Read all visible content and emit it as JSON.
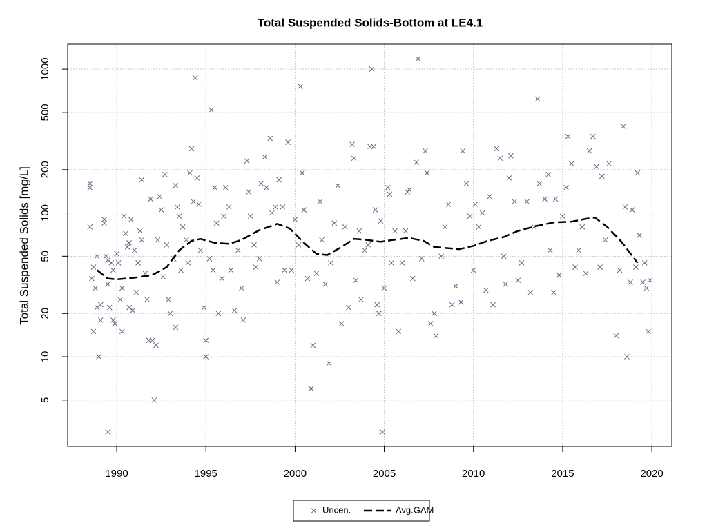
{
  "chart_data": {
    "type": "scatter",
    "title": "Total Suspended Solids-Bottom at LE4.1",
    "y_label": "Total Suspended Solids [mg/L]",
    "log_y": true,
    "grid": true,
    "legend": "bottom",
    "xlim": [
      1987.25,
      2021.12
    ],
    "ylim": [
      2.38,
      1490
    ],
    "xticks": [
      1990,
      1995,
      2000,
      2005,
      2010,
      2015,
      2020
    ],
    "yticks": [
      5,
      10,
      20,
      50,
      100,
      200,
      500,
      1000
    ],
    "series": [
      {
        "name": "Uncen.",
        "kind": "points",
        "color": "#5b6a87",
        "x": [
          1988.5,
          1988.5,
          1988.5,
          1988.6,
          1988.7,
          1988.7,
          1988.8,
          1988.9,
          1988.9,
          1989.0,
          1989.1,
          1989.1,
          1989.3,
          1989.3,
          1989.4,
          1989.5,
          1989.5,
          1989.5,
          1989.6,
          1989.7,
          1989.8,
          1989.8,
          1989.9,
          1990.0,
          1990.1,
          1990.2,
          1990.3,
          1990.3,
          1990.4,
          1990.5,
          1990.6,
          1990.7,
          1990.7,
          1990.8,
          1990.9,
          1991.0,
          1991.1,
          1991.2,
          1991.3,
          1991.4,
          1991.4,
          1991.6,
          1991.7,
          1991.8,
          1991.9,
          1992.0,
          1992.1,
          1992.2,
          1992.3,
          1992.4,
          1992.5,
          1992.6,
          1992.7,
          1992.8,
          1992.9,
          1993.0,
          1993.2,
          1993.3,
          1993.3,
          1993.4,
          1993.5,
          1993.6,
          1993.7,
          1993.9,
          1994.0,
          1994.1,
          1994.2,
          1994.3,
          1994.4,
          1994.5,
          1994.6,
          1994.7,
          1994.9,
          1995.0,
          1995.0,
          1995.2,
          1995.3,
          1995.4,
          1995.5,
          1995.6,
          1995.7,
          1995.9,
          1996.0,
          1996.1,
          1996.3,
          1996.4,
          1996.6,
          1996.8,
          1997.0,
          1997.1,
          1997.3,
          1997.4,
          1997.5,
          1997.7,
          1997.8,
          1998.0,
          1998.1,
          1998.3,
          1998.4,
          1998.6,
          1998.7,
          1998.9,
          1999.0,
          1999.1,
          1999.3,
          1999.4,
          1999.6,
          1999.8,
          2000.0,
          2000.2,
          2000.3,
          2000.4,
          2000.5,
          2000.7,
          2000.9,
          2001.0,
          2001.2,
          2001.4,
          2001.5,
          2001.7,
          2001.9,
          2002.0,
          2002.2,
          2002.4,
          2002.6,
          2002.8,
          2003.0,
          2003.2,
          2003.3,
          2003.4,
          2003.6,
          2003.7,
          2003.9,
          2004.1,
          2004.2,
          2004.3,
          2004.4,
          2004.5,
          2004.6,
          2004.7,
          2004.8,
          2004.9,
          2005.0,
          2005.2,
          2005.3,
          2005.4,
          2005.6,
          2005.8,
          2006.0,
          2006.2,
          2006.3,
          2006.4,
          2006.6,
          2006.8,
          2006.9,
          2007.1,
          2007.3,
          2007.4,
          2007.6,
          2007.8,
          2007.9,
          2008.2,
          2008.4,
          2008.6,
          2008.8,
          2009.0,
          2009.3,
          2009.4,
          2009.6,
          2009.8,
          2010.0,
          2010.1,
          2010.3,
          2010.5,
          2010.7,
          2010.9,
          2011.1,
          2011.3,
          2011.5,
          2011.7,
          2011.8,
          2012.0,
          2012.1,
          2012.3,
          2012.5,
          2012.7,
          2013.0,
          2013.2,
          2013.4,
          2013.6,
          2013.7,
          2014.0,
          2014.2,
          2014.3,
          2014.5,
          2014.6,
          2014.8,
          2015.0,
          2015.2,
          2015.3,
          2015.5,
          2015.7,
          2015.9,
          2016.1,
          2016.3,
          2016.5,
          2016.7,
          2016.9,
          2017.1,
          2017.2,
          2017.4,
          2017.6,
          2018.0,
          2018.2,
          2018.4,
          2018.5,
          2018.6,
          2018.8,
          2018.9,
          2019.1,
          2019.2,
          2019.3,
          2019.5,
          2019.6,
          2019.7,
          2019.8,
          2019.9
        ],
        "values": [
          160,
          150,
          80,
          35,
          15,
          42,
          30,
          50,
          22,
          10,
          18,
          23,
          85,
          90,
          50,
          47,
          32,
          3,
          22,
          45,
          40,
          18,
          17,
          52,
          45,
          25,
          30,
          15,
          95,
          72,
          58,
          62,
          22,
          90,
          21,
          55,
          28,
          45,
          75,
          65,
          170,
          38,
          25,
          13,
          125,
          13,
          5,
          12,
          65,
          130,
          105,
          36,
          185,
          60,
          25,
          20,
          48,
          155,
          16,
          110,
          95,
          40,
          80,
          65,
          45,
          190,
          280,
          120,
          870,
          175,
          115,
          55,
          22,
          13,
          10,
          48,
          520,
          40,
          150,
          85,
          20,
          35,
          95,
          150,
          110,
          40,
          21,
          55,
          30,
          18,
          230,
          140,
          95,
          60,
          42,
          48,
          160,
          245,
          150,
          330,
          100,
          110,
          33,
          170,
          110,
          40,
          310,
          40,
          90,
          60,
          760,
          190,
          105,
          35,
          6,
          12,
          38,
          120,
          65,
          32,
          9,
          45,
          85,
          155,
          17,
          80,
          22,
          300,
          240,
          34,
          75,
          25,
          55,
          60,
          290,
          1000,
          290,
          105,
          23,
          20,
          88,
          3,
          30,
          150,
          135,
          45,
          75,
          15,
          45,
          75,
          140,
          145,
          35,
          225,
          1180,
          48,
          270,
          190,
          17,
          20,
          14,
          50,
          80,
          115,
          23,
          31,
          24,
          270,
          160,
          95,
          40,
          115,
          80,
          100,
          29,
          130,
          23,
          280,
          240,
          50,
          32,
          175,
          250,
          120,
          34,
          45,
          120,
          28,
          80,
          620,
          160,
          125,
          185,
          55,
          28,
          125,
          37,
          95,
          150,
          340,
          220,
          42,
          55,
          80,
          38,
          270,
          340,
          210,
          42,
          180,
          65,
          220,
          14,
          40,
          400,
          110,
          10,
          33,
          105,
          42,
          190,
          70,
          33,
          45,
          30,
          15,
          34
        ]
      },
      {
        "name": "Avg.GAM",
        "kind": "line",
        "color": "#000000",
        "x": [
          1988.9,
          1989.5,
          1990,
          1991,
          1992,
          1992.8,
          1993.5,
          1994.2,
          1994.7,
          1995.5,
          1996.3,
          1997,
          1998,
          1999,
          1999.7,
          2000.5,
          2001.2,
          2001.8,
          2002.5,
          2003.3,
          2004,
          2004.8,
          2005.5,
          2006.4,
          2007.2,
          2007.8,
          2008.5,
          2009.2,
          2010,
          2010.8,
          2011.7,
          2012.5,
          2013.5,
          2014.5,
          2015.5,
          2016.3,
          2016.8,
          2017.5,
          2018.3,
          2019.2
        ],
        "values": [
          40,
          35,
          34.5,
          35.5,
          37,
          42,
          55,
          64,
          66,
          62,
          61,
          65,
          76,
          84,
          78,
          62,
          52,
          51,
          57,
          66,
          65,
          63,
          65,
          67,
          64,
          58,
          57,
          56,
          59,
          64,
          68,
          75,
          81,
          86,
          87,
          91,
          93,
          80,
          63,
          45
        ]
      }
    ]
  }
}
